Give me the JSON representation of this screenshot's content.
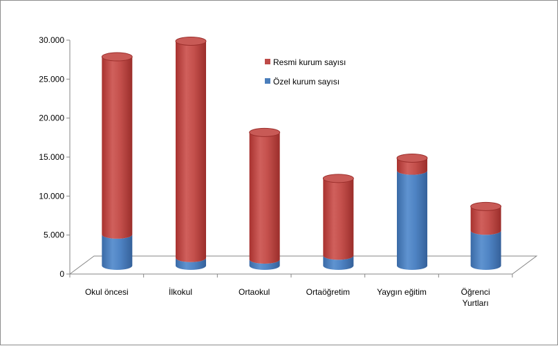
{
  "chart_data": {
    "type": "bar",
    "stacked": true,
    "style": "3d-cylinder",
    "categories": [
      "Okul öncesi",
      "İlkokul",
      "Ortaokul",
      "Ortaöğretim",
      "Yaygın eğitim",
      "Öğrenci Yurtları"
    ],
    "series": [
      {
        "name": "Özel kurum sayısı",
        "color": "#4a7ebb",
        "values": [
          4000,
          1000,
          800,
          1300,
          12200,
          4500
        ]
      },
      {
        "name": "Resmi kurum sayısı",
        "color": "#be4b48",
        "values": [
          22800,
          27800,
          16300,
          9900,
          1600,
          3100
        ]
      }
    ],
    "ylim": [
      0,
      30000
    ],
    "yticks": [
      "0",
      "5.000",
      "10.000",
      "15.000",
      "20.000",
      "25.000",
      "30.000"
    ],
    "legend": [
      "Resmi kurum sayısı",
      "Özel kurum sayısı"
    ],
    "legend_position": "top-right",
    "grid": false,
    "title": "",
    "xlabel": "",
    "ylabel": ""
  }
}
